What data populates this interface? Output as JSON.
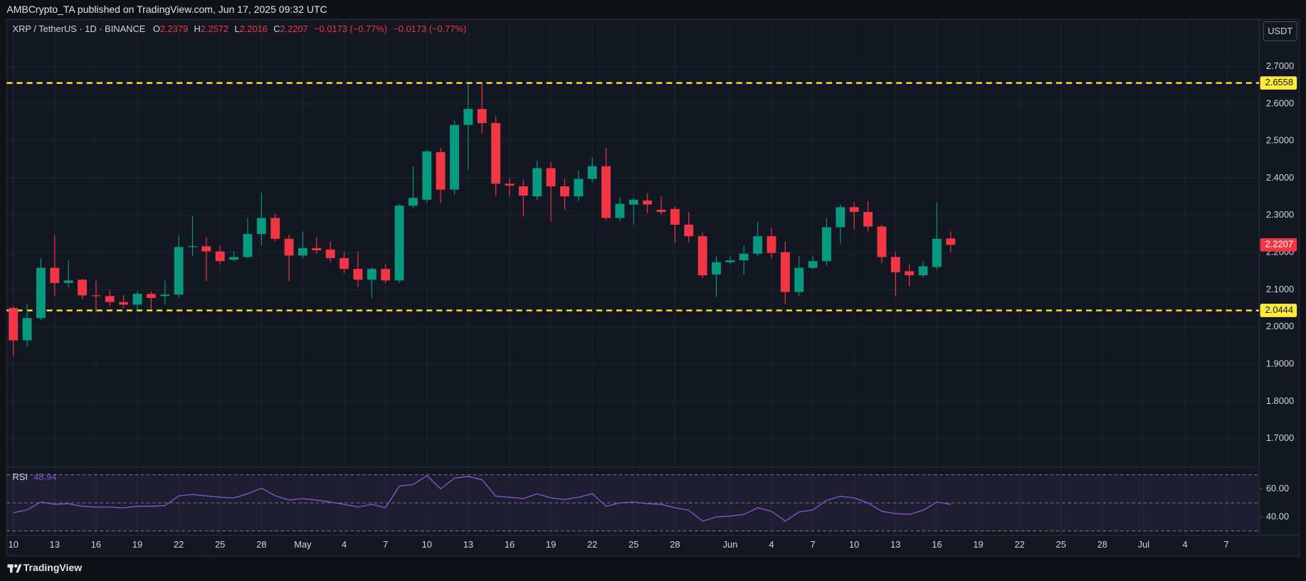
{
  "header": {
    "byline": "AMBCrypto_TA published on TradingView.com, Jun 17, 2025 09:32 UTC",
    "currency": "USDT"
  },
  "footer": {
    "brand": "TradingView"
  },
  "chart_data": {
    "type": "candlestick",
    "symbol": "XRP / TetherUS · 1D · BINANCE",
    "ohlc_letters": [
      "O",
      "H",
      "L",
      "C"
    ],
    "change_label": "−0.0173 (−0.77%)",
    "up_color": "#089981",
    "down_color": "#f23645",
    "grid": true,
    "categories": [
      "10",
      null,
      null,
      "13",
      null,
      null,
      "16",
      null,
      null,
      "19",
      null,
      null,
      "22",
      null,
      null,
      "25",
      null,
      null,
      "28",
      null,
      null,
      "May",
      null,
      null,
      "4",
      null,
      null,
      "7",
      null,
      null,
      "10",
      null,
      null,
      "13",
      null,
      null,
      "16",
      null,
      null,
      "19",
      null,
      null,
      "22",
      null,
      null,
      "25",
      null,
      null,
      "28",
      null,
      null,
      null,
      "Jun",
      null,
      null,
      "4",
      null,
      null,
      "7",
      null,
      null,
      "10",
      null,
      null,
      "13",
      null,
      null,
      "16",
      null,
      null,
      "19",
      null,
      null,
      "22",
      null,
      null,
      "25",
      null,
      null,
      "28",
      null,
      null,
      "Jul",
      null,
      null,
      "4",
      null,
      null,
      "7"
    ],
    "open": [
      2.051,
      1.964,
      2.024,
      2.159,
      2.118,
      2.127,
      2.085,
      2.083,
      2.067,
      2.06,
      2.089,
      2.083,
      2.087,
      2.215,
      2.217,
      2.203,
      2.181,
      2.188,
      2.25,
      2.293,
      2.237,
      2.192,
      2.212,
      2.208,
      2.185,
      2.156,
      2.127,
      2.156,
      2.125,
      2.326,
      2.342,
      2.47,
      2.369,
      2.543,
      2.586,
      2.548,
      2.385,
      2.378,
      2.351,
      2.427,
      2.378,
      2.351,
      2.398,
      2.432,
      2.293,
      2.329,
      2.34,
      2.315,
      2.317,
      2.275,
      2.244,
      2.141,
      2.174,
      2.179,
      2.197,
      2.244,
      2.201,
      2.094,
      2.159,
      2.177,
      2.268,
      2.322,
      2.309,
      2.27,
      2.188,
      2.15,
      2.139,
      2.161,
      2.2379,
      null,
      null,
      null,
      null,
      null,
      null,
      null,
      null,
      null,
      null,
      null,
      null,
      null,
      null,
      null,
      null,
      null,
      null,
      null,
      null
    ],
    "high": [
      2.056,
      2.062,
      2.185,
      2.246,
      2.179,
      2.13,
      2.125,
      2.1,
      2.085,
      2.096,
      2.096,
      2.125,
      2.246,
      2.297,
      2.241,
      2.219,
      2.203,
      2.293,
      2.36,
      2.304,
      2.248,
      2.257,
      2.241,
      2.23,
      2.201,
      2.203,
      2.161,
      2.17,
      2.331,
      2.432,
      2.476,
      2.481,
      2.555,
      2.655,
      2.655,
      2.566,
      2.4,
      2.396,
      2.447,
      2.443,
      2.398,
      2.42,
      2.456,
      2.481,
      2.349,
      2.347,
      2.36,
      2.351,
      2.324,
      2.309,
      2.253,
      2.19,
      2.19,
      2.219,
      2.282,
      2.266,
      2.23,
      2.19,
      2.19,
      2.293,
      2.329,
      2.335,
      2.338,
      2.275,
      2.203,
      2.168,
      2.177,
      2.335,
      2.2572,
      null,
      null,
      null,
      null,
      null,
      null,
      null,
      null,
      null,
      null,
      null,
      null,
      null,
      null,
      null,
      null,
      null,
      null,
      null,
      null
    ],
    "low": [
      1.922,
      1.948,
      2.018,
      2.083,
      2.107,
      2.074,
      2.04,
      2.056,
      2.051,
      2.047,
      2.047,
      2.06,
      2.078,
      2.19,
      2.123,
      2.168,
      2.177,
      2.185,
      2.219,
      2.23,
      2.123,
      2.185,
      2.197,
      2.174,
      2.145,
      2.107,
      2.078,
      2.118,
      2.118,
      2.32,
      2.333,
      2.333,
      2.356,
      2.423,
      2.521,
      2.353,
      2.351,
      2.297,
      2.342,
      2.284,
      2.315,
      2.338,
      2.389,
      2.286,
      2.284,
      2.275,
      2.306,
      2.302,
      2.226,
      2.228,
      2.132,
      2.08,
      2.168,
      2.141,
      2.19,
      2.185,
      2.062,
      2.083,
      2.156,
      2.165,
      2.224,
      2.264,
      2.257,
      2.172,
      2.083,
      2.109,
      2.134,
      2.154,
      2.2016,
      null,
      null,
      null,
      null,
      null,
      null,
      null,
      null,
      null,
      null,
      null,
      null,
      null,
      null,
      null,
      null,
      null,
      null,
      null,
      null
    ],
    "close": [
      1.964,
      2.024,
      2.159,
      2.118,
      2.125,
      2.085,
      2.083,
      2.067,
      2.06,
      2.089,
      2.078,
      2.087,
      2.215,
      2.217,
      2.203,
      2.177,
      2.188,
      2.25,
      2.293,
      2.237,
      2.192,
      2.212,
      2.206,
      2.185,
      2.156,
      2.127,
      2.156,
      2.125,
      2.326,
      2.347,
      2.472,
      2.369,
      2.543,
      2.586,
      2.548,
      2.385,
      2.38,
      2.353,
      2.427,
      2.378,
      2.351,
      2.398,
      2.432,
      2.293,
      2.331,
      2.342,
      2.329,
      2.309,
      2.275,
      2.244,
      2.139,
      2.174,
      2.179,
      2.197,
      2.244,
      2.199,
      2.094,
      2.159,
      2.177,
      2.268,
      2.322,
      2.309,
      2.27,
      2.188,
      2.147,
      2.139,
      2.163,
      2.237,
      2.2207,
      null,
      null,
      null,
      null,
      null,
      null,
      null,
      null,
      null,
      null,
      null,
      null,
      null,
      null,
      null,
      null,
      null,
      null,
      null,
      null
    ],
    "ylim": [
      1.626,
      2.825
    ],
    "yticks": [
      {
        "value": 1.7,
        "label": "1.7000"
      },
      {
        "value": 1.8,
        "label": "1.8000"
      },
      {
        "value": 1.9,
        "label": "1.9000"
      },
      {
        "value": 2.0,
        "label": "2.0000"
      },
      {
        "value": 2.1,
        "label": "2.1000"
      },
      {
        "value": 2.2,
        "label": "2.2000"
      },
      {
        "value": 2.3,
        "label": "2.3000"
      },
      {
        "value": 2.4,
        "label": "2.4000"
      },
      {
        "value": 2.5,
        "label": "2.5000"
      },
      {
        "value": 2.6,
        "label": "2.6000"
      },
      {
        "value": 2.7,
        "label": "2.7000"
      }
    ],
    "hlines": [
      {
        "value": 2.6558,
        "color": "#ffeb3b"
      },
      {
        "value": 2.0444,
        "color": "#ffeb3b"
      }
    ],
    "rsi": {
      "name": "RSI",
      "color": "#7e57c2",
      "ylim": [
        27,
        75
      ],
      "levels": [
        30,
        50,
        70
      ],
      "yticks": [
        {
          "value": 40,
          "label": "40.00"
        },
        {
          "value": 60,
          "label": "60.00"
        }
      ],
      "values": [
        43,
        45,
        50.6,
        49,
        49.4,
        47.6,
        47,
        47,
        46.5,
        47.6,
        47.6,
        48,
        55,
        56,
        55,
        54,
        53.5,
        56.5,
        60.5,
        55,
        52,
        53,
        52,
        50.6,
        49,
        47,
        49,
        46.5,
        62,
        63,
        69.4,
        60,
        67.6,
        68.8,
        66.5,
        54.7,
        54,
        53,
        56.5,
        53.5,
        52.4,
        54,
        56.5,
        47.6,
        50,
        50.6,
        49.4,
        49,
        46.5,
        44.7,
        37,
        40,
        40.6,
        41.8,
        46.5,
        44,
        37,
        43.5,
        45,
        51.8,
        54.7,
        53.5,
        50,
        44,
        42.4,
        41.8,
        44.7,
        50.6,
        48.94,
        null,
        null,
        null,
        null,
        null,
        null,
        null,
        null,
        null,
        null,
        null,
        null,
        null,
        null,
        null,
        null,
        null,
        null,
        null,
        null
      ]
    }
  }
}
